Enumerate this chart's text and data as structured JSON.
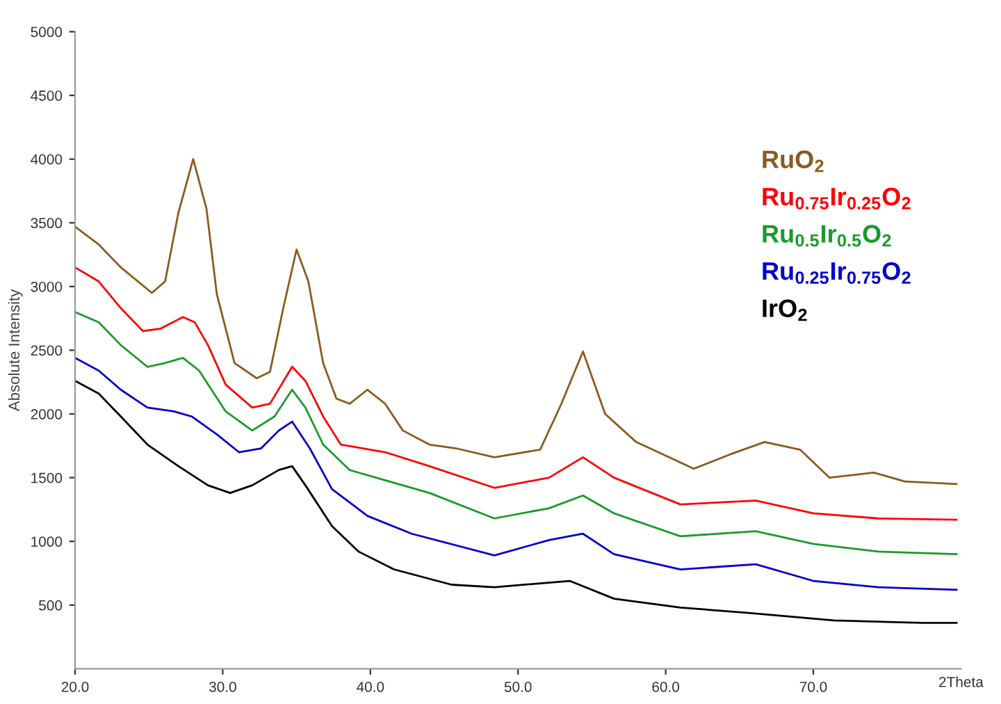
{
  "chart_data": {
    "type": "line",
    "ylabel": "Absolute Intensity",
    "xlabel": "2Theta",
    "xlim": [
      20,
      80
    ],
    "xticks": [
      {
        "value": 20,
        "label": "20.0"
      },
      {
        "value": 30,
        "label": "30.0"
      },
      {
        "value": 40,
        "label": "40.0"
      },
      {
        "value": 50,
        "label": "50.0"
      },
      {
        "value": 60,
        "label": "60.0"
      },
      {
        "value": 70,
        "label": "70.0"
      }
    ],
    "ylim": [
      0,
      5000
    ],
    "yticks": [
      500,
      1000,
      1500,
      2000,
      2500,
      3000,
      3500,
      4000,
      4500,
      5000
    ],
    "grid": false,
    "legend": "top right",
    "series": [
      {
        "name": "RuO$_{2}$",
        "color": "#8b5a1e",
        "x": [
          20,
          21.6,
          23.1,
          25.2,
          26.1,
          27.0,
          28.0,
          28.9,
          29.6,
          30.8,
          32.3,
          33.2,
          34.1,
          35.0,
          35.8,
          36.8,
          37.7,
          38.6,
          39.8,
          41.0,
          42.2,
          44.0,
          45.8,
          48.4,
          51.5,
          52.9,
          54.4,
          55.9,
          58.0,
          61.9,
          64.3,
          66.7,
          69.1,
          71.1,
          74.1,
          76.2,
          79.7
        ],
        "values": [
          3470,
          3330,
          3150,
          2950,
          3040,
          3580,
          4000,
          3610,
          2940,
          2400,
          2280,
          2330,
          2830,
          3290,
          3040,
          2400,
          2120,
          2080,
          2190,
          2080,
          1870,
          1760,
          1730,
          1660,
          1720,
          2070,
          2490,
          2000,
          1780,
          1570,
          1680,
          1780,
          1720,
          1500,
          1540,
          1470,
          1450
        ]
      },
      {
        "name": "Ru$_{0.75}$Ir$_{0.25}$O$_{2}$",
        "color": "#ff0000",
        "x": [
          20,
          21.6,
          23.1,
          24.6,
          25.8,
          27.3,
          28.1,
          29.0,
          30.2,
          32.0,
          33.2,
          34.7,
          35.6,
          36.8,
          38.0,
          41.0,
          44.0,
          48.4,
          52.1,
          54.4,
          56.5,
          61.0,
          66.1,
          70.0,
          74.4,
          79.7
        ],
        "values": [
          3150,
          3040,
          2830,
          2650,
          2670,
          2760,
          2720,
          2540,
          2230,
          2050,
          2080,
          2370,
          2260,
          1980,
          1760,
          1700,
          1590,
          1420,
          1500,
          1660,
          1500,
          1290,
          1320,
          1220,
          1180,
          1170
        ]
      },
      {
        "name": "Ru$_{0.5}$Ir$_{0.5}$O$_{2}$",
        "color": "#1a9a2a",
        "x": [
          20,
          21.6,
          23.1,
          24.9,
          26.1,
          27.3,
          28.4,
          30.2,
          32.0,
          33.5,
          34.7,
          35.6,
          36.8,
          38.6,
          41.0,
          44.0,
          48.4,
          52.1,
          54.4,
          56.5,
          61.0,
          66.1,
          70.0,
          74.4,
          79.7
        ],
        "values": [
          2800,
          2720,
          2540,
          2370,
          2400,
          2440,
          2340,
          2020,
          1870,
          1980,
          2190,
          2050,
          1760,
          1560,
          1480,
          1380,
          1180,
          1260,
          1360,
          1220,
          1040,
          1080,
          980,
          920,
          900
        ]
      },
      {
        "name": "Ru$_{0.25}$Ir$_{0.75}$O$_{2}$",
        "color": "#0000cc",
        "x": [
          20,
          21.6,
          23.1,
          24.9,
          26.7,
          27.9,
          29.6,
          31.1,
          32.6,
          33.8,
          34.7,
          35.9,
          37.4,
          39.8,
          42.8,
          48.4,
          52.1,
          54.4,
          56.5,
          61.0,
          66.1,
          70.0,
          74.4,
          79.7
        ],
        "values": [
          2440,
          2340,
          2190,
          2050,
          2020,
          1980,
          1840,
          1700,
          1730,
          1870,
          1940,
          1730,
          1410,
          1200,
          1060,
          890,
          1010,
          1060,
          900,
          780,
          820,
          690,
          640,
          620
        ]
      },
      {
        "name": "IrO$_{2}$",
        "color": "#000000",
        "x": [
          20,
          21.6,
          23.1,
          24.9,
          27.0,
          29.0,
          30.5,
          32.0,
          33.8,
          34.7,
          35.6,
          37.4,
          39.2,
          41.6,
          45.5,
          48.4,
          53.5,
          56.5,
          61.0,
          65.5,
          71.4,
          77.4,
          79.7
        ],
        "values": [
          2260,
          2160,
          1980,
          1760,
          1590,
          1440,
          1380,
          1440,
          1560,
          1590,
          1440,
          1120,
          920,
          780,
          660,
          640,
          690,
          550,
          480,
          440,
          380,
          360,
          360
        ]
      }
    ]
  }
}
